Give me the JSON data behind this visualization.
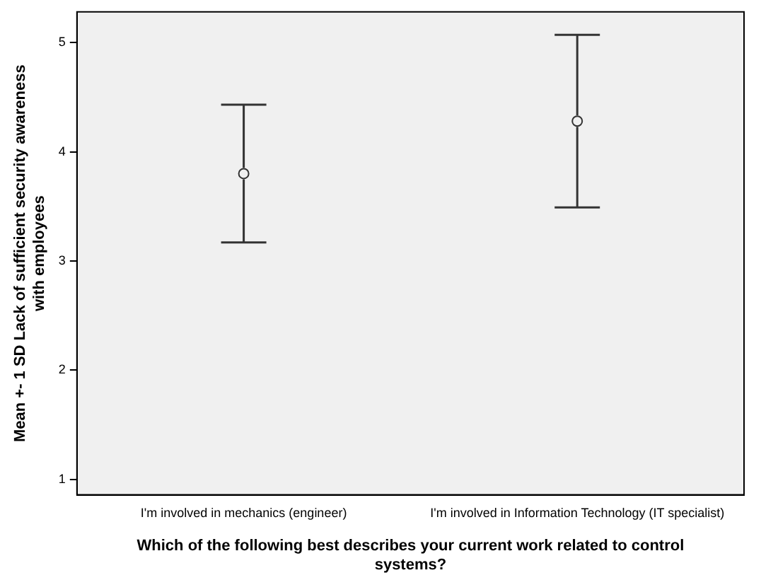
{
  "chart_data": {
    "type": "scatter",
    "xlabel": "Which of the following best describes your current work related to control systems?",
    "ylabel": "Mean +- 1 SD Lack of sufficient security awareness with employees",
    "categories": [
      "I'm involved in mechanics (engineer)",
      "I'm involved in Information Technology (IT specialist)"
    ],
    "series": [
      {
        "color": "#333333",
        "values": [
          3.8,
          4.28
        ],
        "errors": [
          0.63,
          0.79
        ]
      }
    ],
    "ylim": [
      0.86,
      5.28
    ],
    "yticks": [
      1,
      2,
      3,
      4,
      5
    ],
    "marker": "circle",
    "grid": false,
    "legend": false
  }
}
